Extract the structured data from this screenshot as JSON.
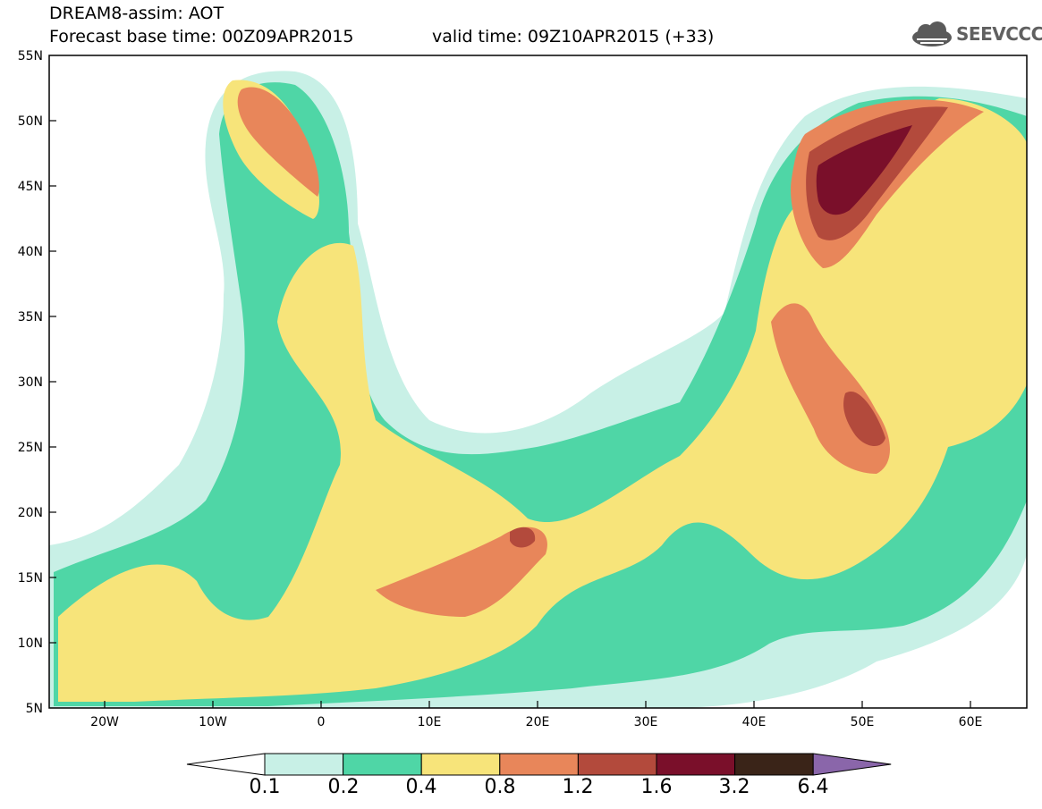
{
  "header": {
    "title": "DREAM8-assim: AOT",
    "base_time": "Forecast base time: 00Z09APR2015",
    "valid_time": "valid time: 09Z10APR2015 (+33)"
  },
  "logo": {
    "text": "SEEVCCC",
    "icon": "cloud-icon"
  },
  "axes": {
    "lat_labels": [
      "55N",
      "50N",
      "45N",
      "40N",
      "35N",
      "30N",
      "25N",
      "20N",
      "15N",
      "10N",
      "5N"
    ],
    "lon_labels": [
      "20W",
      "10W",
      "0",
      "10E",
      "20E",
      "30E",
      "40E",
      "50E",
      "60E"
    ]
  },
  "colorbar": {
    "labels": [
      "0.1",
      "0.2",
      "0.4",
      "0.8",
      "1.2",
      "1.6",
      "3.2",
      "6.4"
    ],
    "colors": [
      "#ffffff",
      "#c8f0e6",
      "#4fd6a6",
      "#f7e47a",
      "#e8865a",
      "#b34a3c",
      "#7a0f2a",
      "#3a2418",
      "#8a66aa"
    ]
  },
  "chart_data": {
    "type": "heatmap",
    "title": "DREAM8-assim: AOT",
    "variable": "AOT",
    "xlim": [
      -25,
      65
    ],
    "ylim": [
      5,
      55
    ],
    "levels": [
      0.1,
      0.2,
      0.4,
      0.8,
      1.2,
      1.6,
      3.2,
      6.4
    ]
  }
}
